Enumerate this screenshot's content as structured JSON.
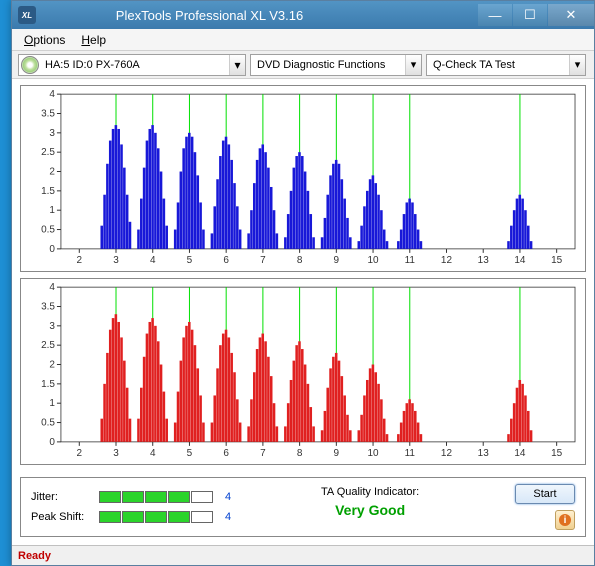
{
  "window": {
    "title": "PlexTools Professional XL V3.16",
    "icon_label": "XL"
  },
  "menu": {
    "options": "Options",
    "help": "Help"
  },
  "toolbar": {
    "drive": "HA:5 ID:0  PX-760A",
    "combo1": "DVD Diagnostic Functions",
    "combo2": "Q-Check TA Test"
  },
  "charts": {
    "x_ticks": [
      2,
      3,
      4,
      5,
      6,
      7,
      8,
      9,
      10,
      11,
      12,
      13,
      14,
      15
    ],
    "y_ticks": [
      0,
      0.5,
      1,
      1.5,
      2,
      2.5,
      3,
      3.5,
      4
    ],
    "grid_x": [
      3,
      4,
      5,
      6,
      7,
      8,
      9,
      10,
      11,
      14
    ],
    "grid_color": "#00e000",
    "top": {
      "color": "#1818d8",
      "clusters": [
        {
          "c": 3,
          "vals": [
            0.6,
            1.4,
            2.2,
            2.8,
            3.1,
            3.2,
            3.1,
            2.7,
            2.1,
            1.4,
            0.7
          ]
        },
        {
          "c": 4,
          "vals": [
            0.5,
            1.3,
            2.1,
            2.8,
            3.1,
            3.2,
            3.0,
            2.6,
            2.0,
            1.3,
            0.6
          ]
        },
        {
          "c": 5,
          "vals": [
            0.5,
            1.2,
            2.0,
            2.6,
            2.9,
            3.0,
            2.9,
            2.5,
            1.9,
            1.2,
            0.5
          ]
        },
        {
          "c": 6,
          "vals": [
            0.4,
            1.1,
            1.8,
            2.4,
            2.8,
            2.9,
            2.7,
            2.3,
            1.7,
            1.1,
            0.5
          ]
        },
        {
          "c": 7,
          "vals": [
            0.4,
            1.0,
            1.7,
            2.3,
            2.6,
            2.7,
            2.5,
            2.1,
            1.6,
            1.0,
            0.4
          ]
        },
        {
          "c": 8,
          "vals": [
            0.3,
            0.9,
            1.5,
            2.1,
            2.4,
            2.5,
            2.4,
            2.0,
            1.5,
            0.9,
            0.3
          ]
        },
        {
          "c": 9,
          "vals": [
            0.3,
            0.8,
            1.4,
            1.9,
            2.2,
            2.3,
            2.2,
            1.8,
            1.3,
            0.8,
            0.3
          ]
        },
        {
          "c": 10,
          "vals": [
            0.2,
            0.6,
            1.1,
            1.5,
            1.8,
            1.9,
            1.7,
            1.4,
            1.0,
            0.5,
            0.2
          ]
        },
        {
          "c": 11,
          "vals": [
            0.2,
            0.5,
            0.9,
            1.2,
            1.3,
            1.2,
            0.9,
            0.5,
            0.2
          ]
        },
        {
          "c": 14,
          "vals": [
            0.2,
            0.6,
            1.0,
            1.3,
            1.4,
            1.3,
            1.0,
            0.6,
            0.2
          ]
        }
      ]
    },
    "bottom": {
      "color": "#e02020",
      "clusters": [
        {
          "c": 3,
          "vals": [
            0.6,
            1.5,
            2.3,
            2.9,
            3.2,
            3.3,
            3.1,
            2.7,
            2.1,
            1.4,
            0.6
          ]
        },
        {
          "c": 4,
          "vals": [
            0.6,
            1.4,
            2.2,
            2.8,
            3.1,
            3.2,
            3.0,
            2.6,
            2.0,
            1.3,
            0.6
          ]
        },
        {
          "c": 5,
          "vals": [
            0.5,
            1.3,
            2.1,
            2.7,
            3.0,
            3.1,
            2.9,
            2.5,
            1.9,
            1.2,
            0.5
          ]
        },
        {
          "c": 6,
          "vals": [
            0.5,
            1.2,
            1.9,
            2.5,
            2.8,
            2.9,
            2.7,
            2.3,
            1.8,
            1.1,
            0.5
          ]
        },
        {
          "c": 7,
          "vals": [
            0.4,
            1.1,
            1.8,
            2.4,
            2.7,
            2.8,
            2.6,
            2.2,
            1.7,
            1.0,
            0.4
          ]
        },
        {
          "c": 8,
          "vals": [
            0.4,
            1.0,
            1.6,
            2.1,
            2.5,
            2.6,
            2.4,
            2.0,
            1.5,
            0.9,
            0.4
          ]
        },
        {
          "c": 9,
          "vals": [
            0.3,
            0.8,
            1.4,
            1.9,
            2.2,
            2.3,
            2.1,
            1.7,
            1.2,
            0.7,
            0.3
          ]
        },
        {
          "c": 10,
          "vals": [
            0.3,
            0.7,
            1.2,
            1.6,
            1.9,
            2.0,
            1.8,
            1.5,
            1.1,
            0.6,
            0.2
          ]
        },
        {
          "c": 11,
          "vals": [
            0.2,
            0.5,
            0.8,
            1.0,
            1.1,
            1.0,
            0.8,
            0.5,
            0.2
          ]
        },
        {
          "c": 14,
          "vals": [
            0.2,
            0.6,
            1.0,
            1.4,
            1.6,
            1.5,
            1.2,
            0.8,
            0.3
          ]
        }
      ]
    }
  },
  "bottom": {
    "jitter_label": "Jitter:",
    "jitter_segments": [
      true,
      true,
      true,
      true,
      false
    ],
    "jitter_value": "4",
    "peakshift_label": "Peak Shift:",
    "peakshift_segments": [
      true,
      true,
      true,
      true,
      false
    ],
    "peakshift_value": "4",
    "ta_label": "TA Quality Indicator:",
    "ta_grade": "Very Good",
    "start": "Start"
  },
  "status": "Ready"
}
